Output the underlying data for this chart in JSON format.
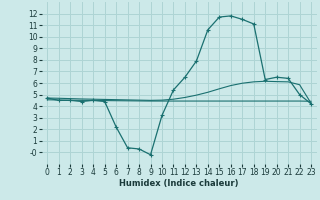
{
  "xlabel": "Humidex (Indice chaleur)",
  "background_color": "#cce9e9",
  "grid_color": "#aed4d4",
  "line_color": "#1a7070",
  "x_main": [
    0,
    1,
    2,
    3,
    4,
    5,
    6,
    7,
    8,
    9,
    10,
    11,
    12,
    13,
    14,
    15,
    16,
    17,
    18,
    19,
    20,
    21,
    22,
    23
  ],
  "y_main": [
    4.7,
    4.5,
    4.5,
    4.4,
    4.5,
    4.4,
    2.2,
    0.4,
    0.3,
    -0.2,
    3.2,
    5.4,
    6.5,
    7.9,
    10.6,
    11.7,
    11.8,
    11.5,
    11.1,
    6.3,
    6.5,
    6.4,
    5.0,
    4.2
  ],
  "y_avg": [
    4.7,
    4.68,
    4.65,
    4.62,
    4.6,
    4.58,
    4.56,
    4.54,
    4.52,
    4.5,
    4.52,
    4.6,
    4.75,
    4.95,
    5.2,
    5.5,
    5.78,
    5.98,
    6.1,
    6.15,
    6.12,
    6.1,
    5.85,
    4.25
  ],
  "y_flat": [
    4.55,
    4.53,
    4.51,
    4.5,
    4.49,
    4.48,
    4.47,
    4.46,
    4.45,
    4.44,
    4.44,
    4.44,
    4.44,
    4.44,
    4.44,
    4.44,
    4.44,
    4.44,
    4.44,
    4.44,
    4.44,
    4.44,
    4.44,
    4.42
  ],
  "ylim": [
    -1,
    13
  ],
  "xlim": [
    -0.5,
    23.5
  ],
  "yticks": [
    0,
    1,
    2,
    3,
    4,
    5,
    6,
    7,
    8,
    9,
    10,
    11,
    12
  ],
  "ytick_labels": [
    "-0",
    "1",
    "2",
    "3",
    "4",
    "5",
    "6",
    "7",
    "8",
    "9",
    "10",
    "11",
    "12"
  ],
  "xticks": [
    0,
    1,
    2,
    3,
    4,
    5,
    6,
    7,
    8,
    9,
    10,
    11,
    12,
    13,
    14,
    15,
    16,
    17,
    18,
    19,
    20,
    21,
    22,
    23
  ],
  "xlabel_fontsize": 6.0,
  "tick_fontsize": 5.5
}
